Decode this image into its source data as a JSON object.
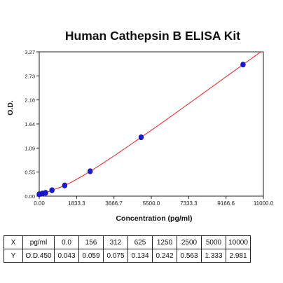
{
  "chart_data": {
    "type": "scatter",
    "title": "Human Cathepsin B ELISA Kit",
    "xlabel": "Concentration (pg/ml)",
    "ylabel": "O.D.",
    "xlim": [
      0,
      11000
    ],
    "ylim": [
      0,
      3.27
    ],
    "x_ticks": [
      "0.00",
      "1833.3",
      "3666.7",
      "5500.0",
      "7333.3",
      "9166.6",
      "11000.0"
    ],
    "y_ticks": [
      "0.00",
      "0.55",
      "1.09",
      "1.64",
      "2.18",
      "2.73",
      "3.27"
    ],
    "x": [
      0,
      156,
      312,
      625,
      1250,
      2500,
      5000,
      10000
    ],
    "y": [
      0.043,
      0.059,
      0.075,
      0.134,
      0.242,
      0.563,
      1.333,
      2.981
    ],
    "grid": false,
    "colors": {
      "points": "#1a1ad6",
      "curve": "#e52020",
      "axis": "#222222"
    }
  },
  "table": {
    "rows": [
      {
        "label": "X",
        "unit": "pg/ml",
        "values": [
          "0.0",
          "156",
          "312",
          "625",
          "1250",
          "2500",
          "5000",
          "10000"
        ]
      },
      {
        "label": "Y",
        "unit": "O.D.450",
        "values": [
          "0.043",
          "0.059",
          "0.075",
          "0.134",
          "0.242",
          "0.563",
          "1.333",
          "2.981"
        ]
      }
    ]
  }
}
